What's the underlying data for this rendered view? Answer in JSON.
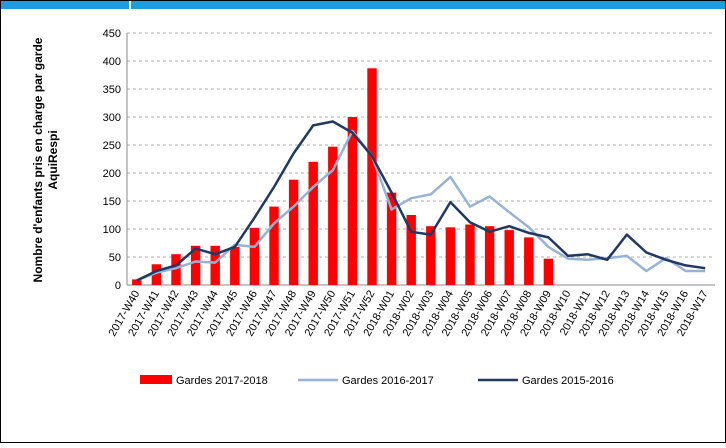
{
  "chart_data": {
    "type": "bar-line",
    "y_label": [
      "Nombre d'enfants pris en charge par garde",
      "AquiRespi"
    ],
    "categories": [
      "2017-W40",
      "2017-W41",
      "2017-W42",
      "2017-W43",
      "2017-W44",
      "2017-W45",
      "2017-W46",
      "2017-W47",
      "2017-W48",
      "2017-W49",
      "2017-W50",
      "2017-W51",
      "2017-W52",
      "2018-W01",
      "2018-W02",
      "2018-W03",
      "2018-W04",
      "2018-W05",
      "2018-W06",
      "2018-W07",
      "2018-W08",
      "2018-W09",
      "2018-W10",
      "2018-W11",
      "2018-W12",
      "2018-W13",
      "2018-W14",
      "2018-W15",
      "2018-W16",
      "2018-W17"
    ],
    "series": [
      {
        "name": "Gardes 2017-2018",
        "kind": "bar",
        "color": "#ff0000",
        "values": [
          10,
          37,
          55,
          70,
          70,
          68,
          102,
          140,
          188,
          220,
          247,
          300,
          387,
          165,
          125,
          105,
          103,
          108,
          105,
          98,
          85,
          47,
          null,
          null,
          null,
          null,
          null,
          null,
          null,
          null
        ]
      },
      {
        "name": "Gardes 2016-2017",
        "kind": "line",
        "color": "#95b3d7",
        "values": [
          8,
          22,
          30,
          42,
          40,
          72,
          68,
          110,
          140,
          175,
          205,
          275,
          230,
          135,
          155,
          162,
          193,
          140,
          158,
          130,
          103,
          68,
          47,
          45,
          48,
          52,
          25,
          48,
          25,
          25
        ]
      },
      {
        "name": "Gardes 2015-2016",
        "kind": "line",
        "color": "#1f3864",
        "values": [
          8,
          25,
          35,
          65,
          55,
          68,
          120,
          175,
          235,
          285,
          292,
          272,
          230,
          165,
          95,
          90,
          148,
          112,
          95,
          105,
          93,
          85,
          52,
          55,
          45,
          90,
          58,
          45,
          35,
          30
        ]
      }
    ],
    "ylim": [
      0,
      450
    ],
    "yticks": [
      0,
      50,
      100,
      150,
      200,
      250,
      300,
      350,
      400,
      450
    ],
    "grid": true
  }
}
